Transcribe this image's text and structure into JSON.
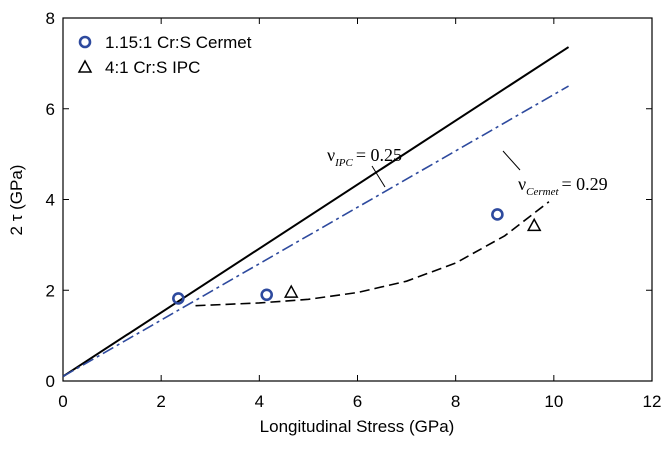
{
  "chart_data": {
    "type": "scatter",
    "xlabel": "Longitudinal Stress (GPa)",
    "ylabel": "2 τ (GPa)",
    "xlim": [
      0,
      12
    ],
    "xticks": [
      0,
      2,
      4,
      6,
      8,
      10,
      12
    ],
    "ylim": [
      0,
      8
    ],
    "yticks": [
      0,
      2,
      4,
      6,
      8
    ],
    "legend": "upper left",
    "series": [
      {
        "name": "1.15:1 Cr:S Cermet",
        "color": "#2e4a9e",
        "marker": "circle",
        "x": [
          2.35,
          4.15,
          8.85
        ],
        "values": [
          1.82,
          1.9,
          3.67
        ]
      },
      {
        "name": "4:1 Cr:S IPC",
        "color": "#000000",
        "marker": "triangle",
        "x": [
          4.65,
          9.6
        ],
        "values": [
          1.96,
          3.43
        ]
      }
    ],
    "lines": [
      {
        "color": "#000000",
        "style": "solid",
        "x": [
          0,
          10.3
        ],
        "values": [
          0.1,
          7.36
        ]
      },
      {
        "color": "#2e4a9e",
        "style": "dashdot",
        "x": [
          0,
          10.3
        ],
        "values": [
          0.1,
          6.5
        ]
      },
      {
        "color": "#000000",
        "style": "dashed",
        "x": [
          2.7,
          4,
          5,
          6,
          7,
          8,
          9,
          9.9
        ],
        "values": [
          1.66,
          1.72,
          1.8,
          1.95,
          2.2,
          2.6,
          3.2,
          3.95
        ]
      }
    ],
    "annotations": [
      {
        "symbol": "ν",
        "sub": "IPC",
        "text": "= 0.25"
      },
      {
        "symbol": "ν",
        "sub": "Cermet",
        "text": "= 0.29"
      }
    ]
  }
}
